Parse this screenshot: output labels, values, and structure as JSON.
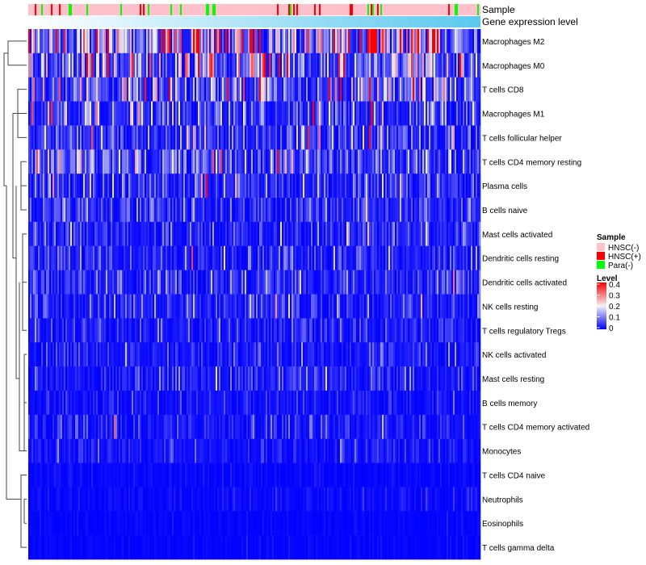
{
  "chart_data": {
    "type": "heatmap",
    "annotation_labels": {
      "sample": "Sample",
      "gene": "Gene expression level"
    },
    "rows": [
      "Macrophages M2",
      "Macrophages M0",
      "T cells CD8",
      "Macrophages M1",
      "T cells follicular helper",
      "T cells CD4 memory resting",
      "Plasma cells",
      "B cells naive",
      "Mast cells activated",
      "Dendritic cells resting",
      "Dendritic cells activated",
      "NK cells resting",
      "T cells regulatory  Tregs",
      "NK cells activated",
      "Mast cells resting",
      "B cells memory",
      "T cells CD4 memory activated",
      "Monocytes",
      "T cells CD4 naive",
      "Neutrophils",
      "Eosinophils",
      "T cells gamma delta"
    ],
    "row_mean_level": [
      0.18,
      0.12,
      0.09,
      0.06,
      0.06,
      0.08,
      0.05,
      0.04,
      0.04,
      0.035,
      0.04,
      0.035,
      0.03,
      0.025,
      0.03,
      0.02,
      0.025,
      0.02,
      0.008,
      0.01,
      0.005,
      0.005
    ],
    "n_samples": 280,
    "sample_fractions": {
      "HNSC(-)": 0.88,
      "HNSC(+)": 0.05,
      "Para(-)": 0.07
    },
    "legend_sample": {
      "title": "Sample",
      "items": [
        {
          "label": "HNSC(-)",
          "color": "#ffc0cb"
        },
        {
          "label": "HNSC(+)",
          "color": "#ff0000"
        },
        {
          "label": "Para(-)",
          "color": "#00ff00"
        }
      ]
    },
    "legend_level": {
      "title": "Level",
      "ticks": [
        "0.4",
        "0.3",
        "0.2",
        "0.1",
        "0"
      ],
      "range": [
        0,
        0.4
      ]
    },
    "colors": {
      "low": "#0000ff",
      "mid": "#f2f2f2",
      "high": "#ff0000",
      "gene_low": "#ffffff",
      "gene_high": "#5bc8ef"
    }
  }
}
